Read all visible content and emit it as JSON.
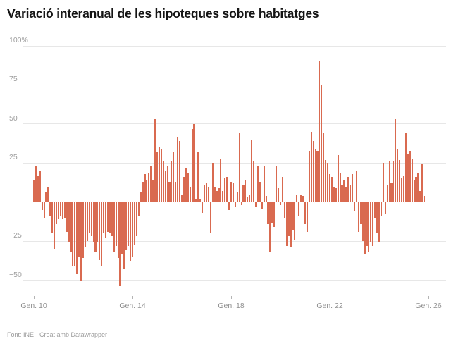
{
  "title": "Variació interanual de les hipoteques sobre habitatges",
  "footer": "Font: INE · Creat amb Datawrapper",
  "colors": {
    "bar": "#d96a50",
    "zero_line": "#1f1f1f",
    "gridline": "#e7e7e7",
    "axis_text": "#9b9b9b"
  },
  "chart_data": {
    "type": "bar",
    "title": "Variació interanual de les hipoteques sobre habitatges",
    "unit": "%",
    "grid": true,
    "legend": "none",
    "start_month": "2010-01",
    "end_month": "2025-11",
    "ylim": [
      -60,
      105
    ],
    "y_ticks": [
      {
        "label": "100%",
        "value": 100
      },
      {
        "label": "75",
        "value": 75
      },
      {
        "label": "50",
        "value": 50
      },
      {
        "label": "25",
        "value": 25
      },
      {
        "label": "",
        "value": 0
      },
      {
        "label": "−25",
        "value": -25
      },
      {
        "label": "−50",
        "value": -50
      }
    ],
    "x_ticks": [
      {
        "label": "Gen. 10",
        "month_index": 0
      },
      {
        "label": "Gen. 14",
        "month_index": 48
      },
      {
        "label": "Gen. 18",
        "month_index": 96
      },
      {
        "label": "Gen. 22",
        "month_index": 144
      },
      {
        "label": "Gen. 26",
        "month_index": 192
      }
    ],
    "values": [
      14,
      23,
      17,
      20,
      -5,
      -10,
      6,
      10,
      -9,
      -20,
      -30,
      -14,
      -11,
      -9,
      -11,
      -10,
      -19,
      -26,
      -32,
      -41,
      -41,
      -46,
      -35,
      -50,
      -36,
      -29,
      -25,
      -20,
      -22,
      -26,
      -32,
      -26,
      -37,
      -41,
      -20,
      -23,
      -19,
      -20,
      -22,
      -32,
      -28,
      -36,
      -54,
      -33,
      -43,
      -31,
      -28,
      -38,
      -35,
      -27,
      -22,
      -9,
      6,
      13,
      18,
      14,
      19,
      23,
      14,
      53,
      32,
      35,
      34,
      26,
      20,
      23,
      13,
      26,
      32,
      13,
      42,
      39,
      5,
      16,
      22,
      19,
      10,
      47,
      50,
      2,
      32,
      2,
      -7,
      11,
      12,
      10,
      -20,
      25,
      10,
      7,
      9,
      28,
      7,
      15,
      16,
      -5,
      13,
      12,
      -3,
      6,
      44,
      -2,
      11,
      14,
      3,
      5,
      40,
      26,
      -3,
      23,
      13,
      -4,
      23,
      4,
      -14,
      -32,
      -13,
      -16,
      23,
      9,
      -2,
      16,
      -10,
      -28,
      -22,
      -29,
      -18,
      -24,
      5,
      -9,
      5,
      4,
      -14,
      -19,
      33,
      45,
      39,
      34,
      33,
      90,
      75,
      44,
      27,
      25,
      18,
      16,
      10,
      9,
      30,
      19,
      11,
      14,
      10,
      16,
      11,
      18,
      -6,
      20,
      -19,
      -14,
      -25,
      -33,
      -28,
      -32,
      -26,
      -28,
      -10,
      -20,
      -26,
      -9,
      25,
      -8,
      11,
      26,
      12,
      26,
      53,
      34,
      27,
      15,
      17,
      44,
      31,
      33,
      28,
      14,
      16,
      19,
      7,
      24,
      4
    ]
  }
}
